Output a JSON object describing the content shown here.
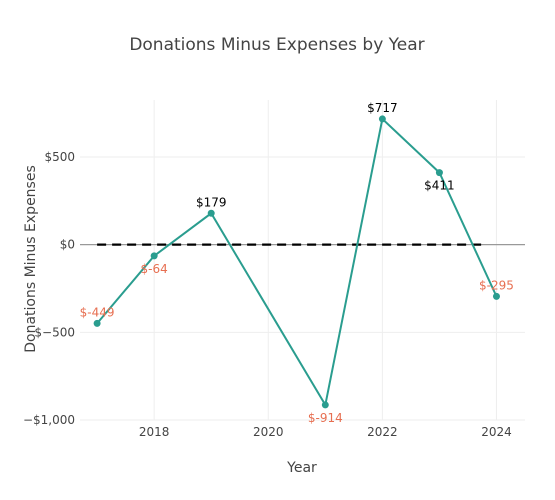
{
  "chart_data": {
    "type": "line",
    "title": "Donations Minus Expenses by Year",
    "xlabel": "Year",
    "ylabel": "Donations Minus Expenses",
    "xlim": [
      2016.7,
      2024.5
    ],
    "ylim": [
      -1000,
      825
    ],
    "x_ticks": [
      {
        "value": 2018,
        "label": "2018"
      },
      {
        "value": 2020,
        "label": "2020"
      },
      {
        "value": 2022,
        "label": "2022"
      },
      {
        "value": 2024,
        "label": "2024"
      }
    ],
    "y_ticks": [
      {
        "value": 500,
        "label": "$500"
      },
      {
        "value": 0,
        "label": "$0"
      },
      {
        "value": -500,
        "label": "$−500"
      },
      {
        "value": -1000,
        "label": "−$1,000"
      }
    ],
    "grid": true,
    "zero_line": true,
    "reference_line": {
      "y": 0,
      "x_range": [
        2017,
        2023.8
      ],
      "style": "dashed",
      "color": "#000000"
    },
    "line_color": "#2a9d8f",
    "positive_label_color": "#000000",
    "negative_label_color": "#e76f51",
    "series": [
      {
        "x": [
          2017,
          2018,
          2019,
          2021,
          2022,
          2023,
          2024
        ],
        "values": [
          -449,
          -64,
          179,
          -914,
          717,
          411,
          -295
        ],
        "labels": [
          "$-449",
          "$-64",
          "$179",
          "$-914",
          "$717",
          "$411",
          "$-295"
        ],
        "label_positions": [
          "above",
          "below",
          "above",
          "below",
          "above",
          "below",
          "above"
        ]
      }
    ]
  }
}
